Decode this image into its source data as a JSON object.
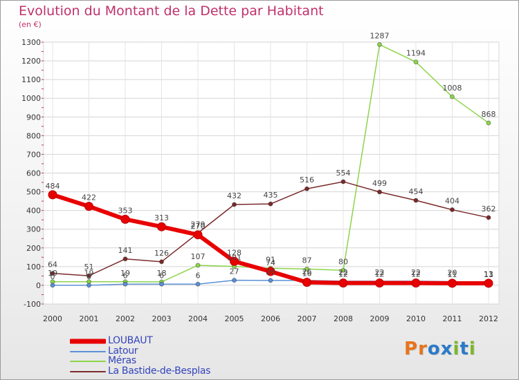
{
  "header": {
    "title": "Evolution du Montant de la Dette par Habitant",
    "unit": "(en €)"
  },
  "logo": {
    "text": "Proxiti",
    "letters": [
      "P",
      "r",
      "o",
      "x",
      "i",
      "t",
      "i"
    ],
    "colors": [
      "#e8731c",
      "#e8731c",
      "#2a7ac8",
      "#2a7ac8",
      "#7ab82a",
      "#2a7ac8",
      "#7ab82a"
    ]
  },
  "chart_data": {
    "type": "line",
    "title": "Evolution du Montant de la Dette par Habitant",
    "ylabel": "(en €)",
    "x": [
      "2000",
      "2001",
      "2002",
      "2003",
      "2004",
      "2005",
      "2006",
      "2007",
      "2008",
      "2009",
      "2010",
      "2011",
      "2012"
    ],
    "ylim": [
      -100,
      1300
    ],
    "yticks": [
      "-100",
      "0",
      "100",
      "200",
      "300",
      "400",
      "500",
      "600",
      "700",
      "800",
      "900",
      "1000",
      "1100",
      "1200",
      "1300"
    ],
    "grid": true,
    "legend_position": "bottom-left",
    "series": [
      {
        "name": "LOUBAUT",
        "color": "#e80000",
        "values": [
          484,
          422,
          353,
          313,
          270,
          128,
          74,
          16,
          12,
          12,
          12,
          11,
          11
        ],
        "labels": [
          "484",
          "422",
          "353",
          "313",
          "270",
          "128",
          "74",
          "16",
          "12",
          "12",
          "12",
          "11",
          "11"
        ]
      },
      {
        "name": "Latour",
        "color": "#5b8fd6",
        "values": [
          0,
          0,
          6,
          6,
          6,
          27,
          26,
          26,
          22,
          22,
          22,
          20,
          13
        ],
        "labels": [
          "0",
          "0",
          "6",
          "6",
          "6",
          "27",
          "26",
          "26",
          "22",
          "22",
          "22",
          "20",
          "13"
        ]
      },
      {
        "name": "Méras",
        "color": "#8cd44a",
        "values": [
          19,
          19,
          19,
          18,
          107,
          101,
          91,
          87,
          80,
          1287,
          1194,
          1008,
          868
        ],
        "labels": [
          "19",
          "19",
          "19",
          "18",
          "107",
          "101",
          "91",
          "87",
          "80",
          "1287",
          "1194",
          "1008",
          "868"
        ]
      },
      {
        "name": "La Bastide-de-Besplas",
        "color": "#7a2a2a",
        "values": [
          64,
          51,
          141,
          126,
          279,
          432,
          435,
          516,
          554,
          499,
          454,
          404,
          362
        ],
        "labels": [
          "64",
          "51",
          "141",
          "126",
          "279",
          "432",
          "435",
          "516",
          "554",
          "499",
          "454",
          "404",
          "362"
        ]
      }
    ]
  }
}
